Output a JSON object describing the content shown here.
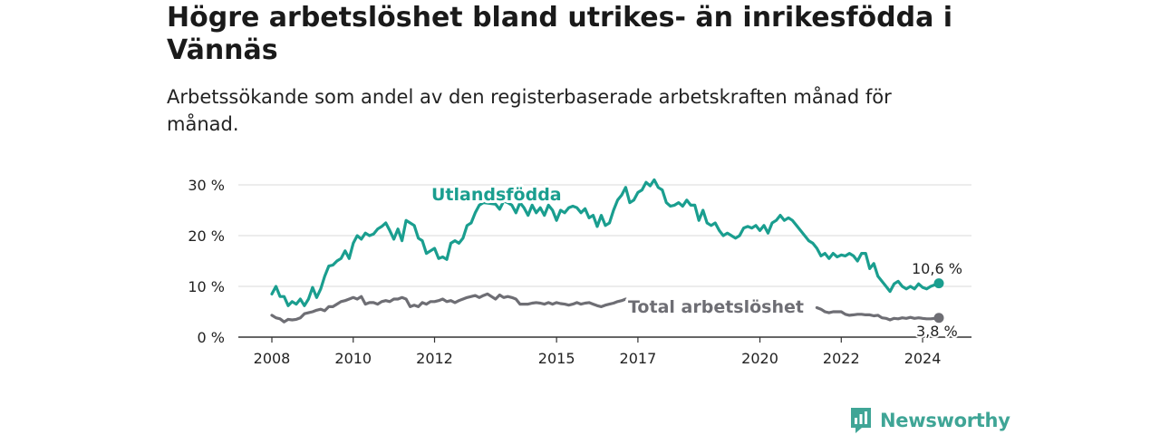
{
  "header": {
    "title": "Högre arbetslöshet bland utrikes- än inrikesfödda i Vännäs",
    "subtitle": "Arbetssökande som andel av den registerbaserade arbetskraften månad för månad."
  },
  "brand": {
    "name": "Newsworthy",
    "icon": "newsworthy-logo-icon",
    "color": "#3fa596"
  },
  "chart_data": {
    "type": "line",
    "title": "Högre arbetslöshet bland utrikes- än inrikesfödda i Vännäs",
    "subtitle": "Arbetssökande som andel av den registerbaserade arbetskraften månad för månad.",
    "xlabel": "",
    "ylabel": "",
    "xlim": [
      2008,
      2025.2
    ],
    "ylim": [
      0,
      30
    ],
    "x_ticks": [
      2008,
      2010,
      2012,
      2015,
      2017,
      2020,
      2022,
      2024
    ],
    "x_tick_labels": [
      "2008",
      "2010",
      "2012",
      "2015",
      "2017",
      "2020",
      "2022",
      "2024"
    ],
    "y_ticks": [
      0,
      10,
      20,
      30
    ],
    "y_tick_labels": [
      "0 %",
      "10 %",
      "20 %",
      "30 %"
    ],
    "grid": true,
    "series": [
      {
        "name": "Utlandsfödda",
        "color": "#1a9e8f",
        "end_label": "10,6 %",
        "points": [
          [
            2008.0,
            8.5
          ],
          [
            2008.1,
            10.0
          ],
          [
            2008.2,
            8.0
          ],
          [
            2008.3,
            8.0
          ],
          [
            2008.4,
            6.2
          ],
          [
            2008.5,
            7.0
          ],
          [
            2008.6,
            6.5
          ],
          [
            2008.7,
            7.5
          ],
          [
            2008.8,
            6.2
          ],
          [
            2008.9,
            7.5
          ],
          [
            2009.0,
            9.8
          ],
          [
            2009.1,
            7.8
          ],
          [
            2009.2,
            9.5
          ],
          [
            2009.3,
            12.0
          ],
          [
            2009.4,
            14.0
          ],
          [
            2009.5,
            14.2
          ],
          [
            2009.6,
            15.0
          ],
          [
            2009.7,
            15.5
          ],
          [
            2009.8,
            17.0
          ],
          [
            2009.9,
            15.5
          ],
          [
            2010.0,
            18.5
          ],
          [
            2010.1,
            20.0
          ],
          [
            2010.2,
            19.3
          ],
          [
            2010.3,
            20.5
          ],
          [
            2010.4,
            20.0
          ],
          [
            2010.5,
            20.3
          ],
          [
            2010.6,
            21.3
          ],
          [
            2010.7,
            21.8
          ],
          [
            2010.8,
            22.5
          ],
          [
            2010.9,
            21.0
          ],
          [
            2011.0,
            19.3
          ],
          [
            2011.1,
            21.3
          ],
          [
            2011.2,
            19.0
          ],
          [
            2011.3,
            23.0
          ],
          [
            2011.4,
            22.5
          ],
          [
            2011.5,
            22.0
          ],
          [
            2011.6,
            19.5
          ],
          [
            2011.7,
            19.0
          ],
          [
            2011.8,
            16.5
          ],
          [
            2011.9,
            17.0
          ],
          [
            2012.0,
            17.5
          ],
          [
            2012.1,
            15.5
          ],
          [
            2012.2,
            15.8
          ],
          [
            2012.3,
            15.3
          ],
          [
            2012.4,
            18.5
          ],
          [
            2012.5,
            19.0
          ],
          [
            2012.6,
            18.5
          ],
          [
            2012.7,
            19.5
          ],
          [
            2012.8,
            22.0
          ],
          [
            2012.9,
            22.5
          ],
          [
            2013.0,
            24.5
          ],
          [
            2013.1,
            26.0
          ],
          [
            2013.2,
            26.5
          ],
          [
            2013.5,
            26.2
          ],
          [
            2013.6,
            25.2
          ],
          [
            2013.7,
            26.8
          ],
          [
            2013.8,
            26.5
          ],
          [
            2013.9,
            26.0
          ],
          [
            2014.0,
            24.5
          ],
          [
            2014.1,
            26.5
          ],
          [
            2014.2,
            25.5
          ],
          [
            2014.3,
            24.0
          ],
          [
            2014.4,
            26.0
          ],
          [
            2014.5,
            24.5
          ],
          [
            2014.6,
            25.5
          ],
          [
            2014.7,
            24.0
          ],
          [
            2014.8,
            26.0
          ],
          [
            2014.9,
            25.0
          ],
          [
            2015.0,
            23.0
          ],
          [
            2015.1,
            25.0
          ],
          [
            2015.2,
            24.5
          ],
          [
            2015.3,
            25.5
          ],
          [
            2015.4,
            25.8
          ],
          [
            2015.5,
            25.5
          ],
          [
            2015.6,
            24.5
          ],
          [
            2015.7,
            25.3
          ],
          [
            2015.8,
            23.5
          ],
          [
            2015.9,
            24.0
          ],
          [
            2016.0,
            21.8
          ],
          [
            2016.1,
            24.0
          ],
          [
            2016.2,
            22.0
          ],
          [
            2016.3,
            22.5
          ],
          [
            2016.4,
            25.0
          ],
          [
            2016.5,
            27.0
          ],
          [
            2016.6,
            28.0
          ],
          [
            2016.7,
            29.5
          ],
          [
            2016.8,
            26.5
          ],
          [
            2016.9,
            27.0
          ],
          [
            2017.0,
            28.5
          ],
          [
            2017.1,
            29.0
          ],
          [
            2017.2,
            30.5
          ],
          [
            2017.3,
            29.8
          ],
          [
            2017.4,
            31.0
          ],
          [
            2017.5,
            29.5
          ],
          [
            2017.6,
            29.0
          ],
          [
            2017.7,
            26.5
          ],
          [
            2017.8,
            25.8
          ],
          [
            2017.9,
            26.0
          ],
          [
            2018.0,
            26.5
          ],
          [
            2018.1,
            25.8
          ],
          [
            2018.2,
            27.0
          ],
          [
            2018.3,
            26.0
          ],
          [
            2018.4,
            26.0
          ],
          [
            2018.5,
            23.0
          ],
          [
            2018.6,
            25.0
          ],
          [
            2018.7,
            22.5
          ],
          [
            2018.8,
            22.0
          ],
          [
            2018.9,
            22.5
          ],
          [
            2019.0,
            21.0
          ],
          [
            2019.1,
            20.0
          ],
          [
            2019.2,
            20.5
          ],
          [
            2019.3,
            20.0
          ],
          [
            2019.4,
            19.5
          ],
          [
            2019.5,
            20.0
          ],
          [
            2019.6,
            21.5
          ],
          [
            2019.7,
            21.8
          ],
          [
            2019.8,
            21.5
          ],
          [
            2019.9,
            22.0
          ],
          [
            2020.0,
            21.0
          ],
          [
            2020.1,
            22.0
          ],
          [
            2020.2,
            20.5
          ],
          [
            2020.3,
            22.5
          ],
          [
            2020.4,
            23.0
          ],
          [
            2020.5,
            24.0
          ],
          [
            2020.6,
            23.0
          ],
          [
            2020.7,
            23.5
          ],
          [
            2020.8,
            23.0
          ],
          [
            2020.9,
            22.0
          ],
          [
            2021.0,
            21.0
          ],
          [
            2021.1,
            20.0
          ],
          [
            2021.2,
            19.0
          ],
          [
            2021.3,
            18.5
          ],
          [
            2021.4,
            17.5
          ],
          [
            2021.5,
            16.0
          ],
          [
            2021.6,
            16.5
          ],
          [
            2021.7,
            15.5
          ],
          [
            2021.8,
            16.5
          ],
          [
            2021.9,
            15.8
          ],
          [
            2022.0,
            16.2
          ],
          [
            2022.1,
            16.0
          ],
          [
            2022.2,
            16.5
          ],
          [
            2022.3,
            16.0
          ],
          [
            2022.4,
            15.0
          ],
          [
            2022.5,
            16.5
          ],
          [
            2022.6,
            16.5
          ],
          [
            2022.7,
            13.5
          ],
          [
            2022.8,
            14.5
          ],
          [
            2022.9,
            12.0
          ],
          [
            2023.0,
            11.0
          ],
          [
            2023.1,
            10.0
          ],
          [
            2023.2,
            9.0
          ],
          [
            2023.3,
            10.5
          ],
          [
            2023.4,
            11.0
          ],
          [
            2023.5,
            10.0
          ],
          [
            2023.6,
            9.5
          ],
          [
            2023.7,
            10.0
          ],
          [
            2023.8,
            9.5
          ],
          [
            2023.9,
            10.5
          ],
          [
            2024.0,
            9.8
          ],
          [
            2024.1,
            9.5
          ],
          [
            2024.2,
            10.0
          ],
          [
            2024.3,
            10.3
          ],
          [
            2024.4,
            10.6
          ]
        ]
      },
      {
        "name": "Total arbetslöshet",
        "color": "#6e6e74",
        "end_label": "3,8 %",
        "points": [
          [
            2008.0,
            4.3
          ],
          [
            2008.1,
            3.8
          ],
          [
            2008.2,
            3.6
          ],
          [
            2008.3,
            3.0
          ],
          [
            2008.4,
            3.5
          ],
          [
            2008.5,
            3.4
          ],
          [
            2008.6,
            3.5
          ],
          [
            2008.7,
            3.8
          ],
          [
            2008.8,
            4.6
          ],
          [
            2008.9,
            4.8
          ],
          [
            2009.0,
            5.0
          ],
          [
            2009.1,
            5.3
          ],
          [
            2009.2,
            5.5
          ],
          [
            2009.3,
            5.2
          ],
          [
            2009.4,
            6.0
          ],
          [
            2009.5,
            6.0
          ],
          [
            2009.6,
            6.5
          ],
          [
            2009.7,
            7.0
          ],
          [
            2009.8,
            7.2
          ],
          [
            2009.9,
            7.5
          ],
          [
            2010.0,
            7.8
          ],
          [
            2010.1,
            7.5
          ],
          [
            2010.2,
            8.0
          ],
          [
            2010.3,
            6.5
          ],
          [
            2010.4,
            6.8
          ],
          [
            2010.5,
            6.8
          ],
          [
            2010.6,
            6.5
          ],
          [
            2010.7,
            7.0
          ],
          [
            2010.8,
            7.2
          ],
          [
            2010.9,
            7.0
          ],
          [
            2011.0,
            7.5
          ],
          [
            2011.1,
            7.5
          ],
          [
            2011.2,
            7.8
          ],
          [
            2011.3,
            7.5
          ],
          [
            2011.4,
            6.0
          ],
          [
            2011.5,
            6.3
          ],
          [
            2011.6,
            6.0
          ],
          [
            2011.7,
            6.8
          ],
          [
            2011.8,
            6.5
          ],
          [
            2011.9,
            7.0
          ],
          [
            2012.0,
            7.0
          ],
          [
            2012.1,
            7.2
          ],
          [
            2012.2,
            7.5
          ],
          [
            2012.3,
            7.0
          ],
          [
            2012.4,
            7.2
          ],
          [
            2012.5,
            6.8
          ],
          [
            2012.6,
            7.2
          ],
          [
            2012.7,
            7.5
          ],
          [
            2012.8,
            7.8
          ],
          [
            2012.9,
            8.0
          ],
          [
            2013.0,
            8.2
          ],
          [
            2013.1,
            7.8
          ],
          [
            2013.2,
            8.2
          ],
          [
            2013.3,
            8.5
          ],
          [
            2013.4,
            8.0
          ],
          [
            2013.5,
            7.5
          ],
          [
            2013.6,
            8.3
          ],
          [
            2013.7,
            7.8
          ],
          [
            2013.8,
            8.0
          ],
          [
            2013.9,
            7.8
          ],
          [
            2014.0,
            7.5
          ],
          [
            2014.1,
            6.5
          ],
          [
            2014.2,
            6.5
          ],
          [
            2014.3,
            6.5
          ],
          [
            2014.4,
            6.7
          ],
          [
            2014.5,
            6.8
          ],
          [
            2014.6,
            6.7
          ],
          [
            2014.7,
            6.5
          ],
          [
            2014.8,
            6.8
          ],
          [
            2014.9,
            6.5
          ],
          [
            2015.0,
            6.8
          ],
          [
            2015.1,
            6.6
          ],
          [
            2015.2,
            6.5
          ],
          [
            2015.3,
            6.3
          ],
          [
            2015.4,
            6.5
          ],
          [
            2015.5,
            6.8
          ],
          [
            2015.6,
            6.5
          ],
          [
            2015.7,
            6.7
          ],
          [
            2015.8,
            6.8
          ],
          [
            2015.9,
            6.5
          ],
          [
            2016.0,
            6.2
          ],
          [
            2016.1,
            6.0
          ],
          [
            2016.2,
            6.3
          ],
          [
            2016.3,
            6.5
          ],
          [
            2016.4,
            6.7
          ],
          [
            2016.5,
            7.0
          ],
          [
            2016.6,
            7.2
          ],
          [
            2016.7,
            7.5
          ],
          [
            2021.4,
            5.8
          ],
          [
            2021.5,
            5.5
          ],
          [
            2021.6,
            5.0
          ],
          [
            2021.7,
            4.8
          ],
          [
            2021.8,
            5.0
          ],
          [
            2021.9,
            5.0
          ],
          [
            2022.0,
            5.0
          ],
          [
            2022.1,
            4.5
          ],
          [
            2022.2,
            4.3
          ],
          [
            2022.3,
            4.4
          ],
          [
            2022.4,
            4.5
          ],
          [
            2022.5,
            4.5
          ],
          [
            2022.6,
            4.4
          ],
          [
            2022.7,
            4.4
          ],
          [
            2022.8,
            4.2
          ],
          [
            2022.9,
            4.3
          ],
          [
            2023.0,
            3.8
          ],
          [
            2023.1,
            3.7
          ],
          [
            2023.2,
            3.4
          ],
          [
            2023.3,
            3.7
          ],
          [
            2023.4,
            3.6
          ],
          [
            2023.5,
            3.8
          ],
          [
            2023.6,
            3.7
          ],
          [
            2023.7,
            3.9
          ],
          [
            2023.8,
            3.7
          ],
          [
            2023.9,
            3.8
          ],
          [
            2024.0,
            3.7
          ],
          [
            2024.1,
            3.6
          ],
          [
            2024.2,
            3.6
          ],
          [
            2024.3,
            3.7
          ],
          [
            2024.4,
            3.8
          ]
        ]
      }
    ]
  }
}
